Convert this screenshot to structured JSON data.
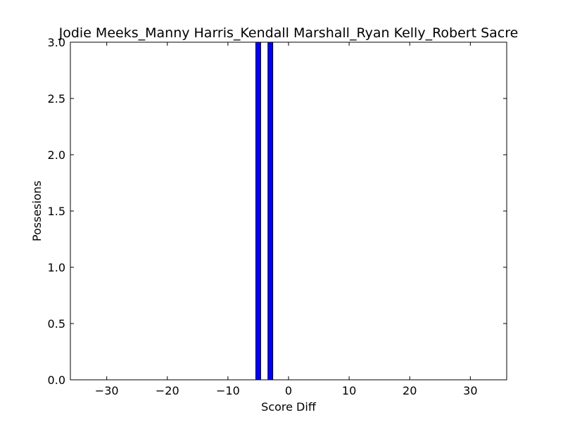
{
  "chart_data": {
    "type": "bar",
    "title": "Jodie Meeks_Manny Harris_Kendall Marshall_Ryan Kelly_Robert Sacre",
    "xlabel": "Score Diff",
    "ylabel": "Possesions",
    "xlim": [
      -36,
      36
    ],
    "ylim": [
      0,
      3
    ],
    "x_ticks": [
      -30,
      -20,
      -10,
      0,
      10,
      20,
      30
    ],
    "x_tick_labels": [
      "−30",
      "−20",
      "−10",
      "0",
      "10",
      "20",
      "30"
    ],
    "y_ticks": [
      0,
      0.5,
      1,
      1.5,
      2,
      2.5,
      3
    ],
    "y_tick_labels": [
      "0.0",
      "0.5",
      "1.0",
      "1.5",
      "2.0",
      "2.5",
      "3.0"
    ],
    "bar_width": 0.8,
    "bars": [
      {
        "x": -35,
        "value": 0
      },
      {
        "x": -34,
        "value": 0
      },
      {
        "x": -33,
        "value": 0
      },
      {
        "x": -32,
        "value": 0
      },
      {
        "x": -31,
        "value": 0
      },
      {
        "x": -30,
        "value": 0
      },
      {
        "x": -29,
        "value": 0
      },
      {
        "x": -28,
        "value": 0
      },
      {
        "x": -27,
        "value": 0
      },
      {
        "x": -26,
        "value": 0
      },
      {
        "x": -25,
        "value": 0
      },
      {
        "x": -24,
        "value": 0
      },
      {
        "x": -23,
        "value": 0
      },
      {
        "x": -22,
        "value": 0
      },
      {
        "x": -21,
        "value": 0
      },
      {
        "x": -20,
        "value": 0
      },
      {
        "x": -19,
        "value": 0
      },
      {
        "x": -18,
        "value": 0
      },
      {
        "x": -17,
        "value": 0
      },
      {
        "x": -16,
        "value": 0
      },
      {
        "x": -15,
        "value": 0
      },
      {
        "x": -14,
        "value": 0
      },
      {
        "x": -13,
        "value": 0
      },
      {
        "x": -12,
        "value": 0
      },
      {
        "x": -11,
        "value": 0
      },
      {
        "x": -10,
        "value": 0
      },
      {
        "x": -9,
        "value": 0
      },
      {
        "x": -8,
        "value": 0
      },
      {
        "x": -7,
        "value": 0
      },
      {
        "x": -6,
        "value": 0
      },
      {
        "x": -5,
        "value": 3
      },
      {
        "x": -4,
        "value": 0
      },
      {
        "x": -3,
        "value": 3
      },
      {
        "x": -2,
        "value": 0
      },
      {
        "x": -1,
        "value": 0
      },
      {
        "x": 0,
        "value": 0
      },
      {
        "x": 1,
        "value": 0
      },
      {
        "x": 2,
        "value": 0
      },
      {
        "x": 3,
        "value": 0
      },
      {
        "x": 4,
        "value": 0
      },
      {
        "x": 5,
        "value": 0
      },
      {
        "x": 6,
        "value": 0
      },
      {
        "x": 7,
        "value": 0
      },
      {
        "x": 8,
        "value": 0
      },
      {
        "x": 9,
        "value": 0
      },
      {
        "x": 10,
        "value": 0
      },
      {
        "x": 11,
        "value": 0
      },
      {
        "x": 12,
        "value": 0
      },
      {
        "x": 13,
        "value": 0
      },
      {
        "x": 14,
        "value": 0
      },
      {
        "x": 15,
        "value": 0
      },
      {
        "x": 16,
        "value": 0
      },
      {
        "x": 17,
        "value": 0
      },
      {
        "x": 18,
        "value": 0
      },
      {
        "x": 19,
        "value": 0
      },
      {
        "x": 20,
        "value": 0
      },
      {
        "x": 21,
        "value": 0
      },
      {
        "x": 22,
        "value": 0
      },
      {
        "x": 23,
        "value": 0
      },
      {
        "x": 24,
        "value": 0
      },
      {
        "x": 25,
        "value": 0
      },
      {
        "x": 26,
        "value": 0
      },
      {
        "x": 27,
        "value": 0
      },
      {
        "x": 28,
        "value": 0
      },
      {
        "x": 29,
        "value": 0
      },
      {
        "x": 30,
        "value": 0
      },
      {
        "x": 31,
        "value": 0
      },
      {
        "x": 32,
        "value": 0
      },
      {
        "x": 33,
        "value": 0
      },
      {
        "x": 34,
        "value": 0
      },
      {
        "x": 35,
        "value": 0
      }
    ],
    "bar_color": "#0000ff",
    "edge_color": "#000000",
    "grid": false,
    "legend": "none"
  }
}
